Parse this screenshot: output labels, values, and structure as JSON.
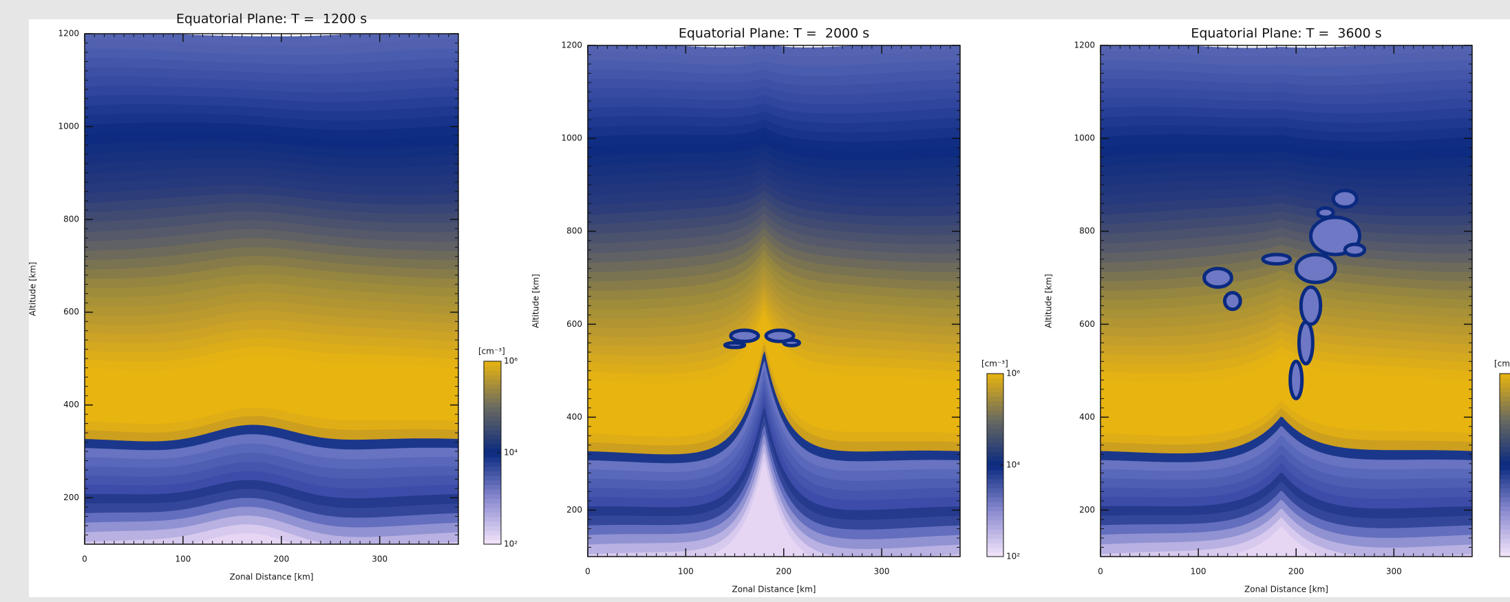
{
  "chart_data": [
    {
      "type": "contour",
      "title": "Equatorial Plane: T =  1200 s",
      "xlabel": "Zonal Distance [km]",
      "ylabel": "Altitude [km]",
      "xlim": [
        0,
        380
      ],
      "ylim": [
        100,
        1200
      ],
      "xticks": [
        0,
        100,
        200,
        300
      ],
      "yticks": [
        200,
        400,
        600,
        800,
        1000,
        1200
      ],
      "colorbar": {
        "label": "[cm⁻³]",
        "log": true,
        "lim": [
          100,
          1000000
        ],
        "ticks": [
          {
            "value": 100,
            "label": "10²"
          },
          {
            "value": 10000,
            "label": "10⁴"
          },
          {
            "value": 1000000,
            "label": "10⁶"
          }
        ]
      }
    },
    {
      "type": "contour",
      "title": "Equatorial Plane: T =  2000 s",
      "xlabel": "Zonal Distance [km]",
      "ylabel": "Altitude [km]",
      "xlim": [
        0,
        380
      ],
      "ylim": [
        100,
        1200
      ],
      "xticks": [
        0,
        100,
        200,
        300
      ],
      "yticks": [
        200,
        400,
        600,
        800,
        1000,
        1200
      ],
      "colorbar": {
        "label": "[cm⁻³]",
        "log": true,
        "lim": [
          100,
          1000000
        ],
        "ticks": [
          {
            "value": 100,
            "label": "10²"
          },
          {
            "value": 10000,
            "label": "10⁴"
          },
          {
            "value": 1000000,
            "label": "10⁶"
          }
        ]
      }
    },
    {
      "type": "contour",
      "title": "Equatorial Plane: T =  3600 s",
      "xlabel": "Zonal Distance [km]",
      "ylabel": "Altitude [km]",
      "xlim": [
        0,
        380
      ],
      "ylim": [
        100,
        1200
      ],
      "xticks": [
        0,
        100,
        200,
        300
      ],
      "yticks": [
        200,
        400,
        600,
        800,
        1000,
        1200
      ],
      "colorbar": {
        "label": "[cm",
        "log": true,
        "lim": [
          100,
          1000000
        ]
      }
    }
  ]
}
